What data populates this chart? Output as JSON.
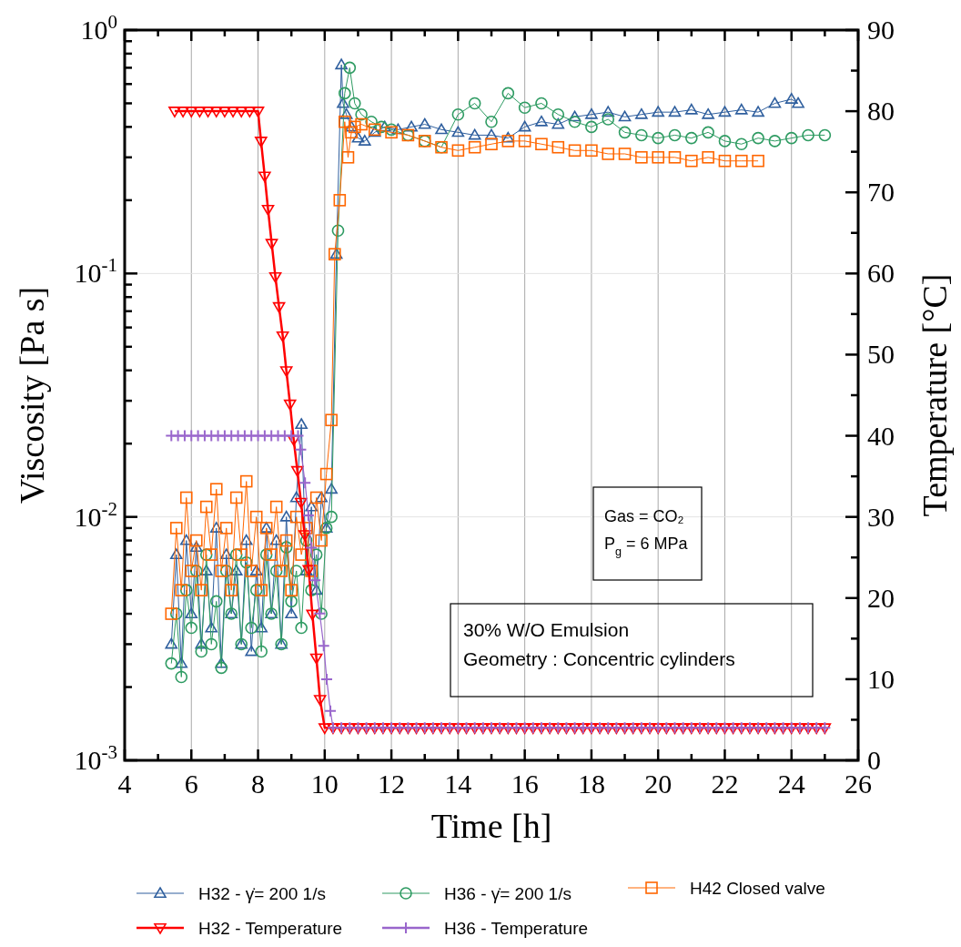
{
  "chart_data": {
    "type": "line",
    "xlabel": "Time [h]",
    "ylabel": "Viscosity [Pa s]",
    "y2label": "Temperature [°C]",
    "log": "y",
    "grid": true,
    "legend": "bottom",
    "xlim": [
      4,
      26
    ],
    "xticks": [
      4,
      {
        "value": 5,
        "label": null
      },
      6,
      {
        "value": 7,
        "label": null
      },
      8,
      {
        "value": 9,
        "label": null
      },
      10,
      {
        "value": 11,
        "label": null
      },
      12,
      {
        "value": 13,
        "label": null
      },
      14,
      {
        "value": 15,
        "label": null
      },
      16,
      {
        "value": 17,
        "label": null
      },
      18,
      {
        "value": 19,
        "label": null
      },
      20,
      {
        "value": 21,
        "label": null
      },
      22,
      {
        "value": 23,
        "label": null
      },
      24,
      {
        "value": 25,
        "label": null
      },
      26
    ],
    "ylim": [
      0.001,
      1
    ],
    "yticks": [
      {
        "value": 0.001,
        "label": "10$^{-3}$"
      },
      {
        "value": 0.002,
        "label": null
      },
      {
        "value": 0.003,
        "label": null
      },
      {
        "value": 0.004,
        "label": null
      },
      {
        "value": 0.005,
        "label": null
      },
      {
        "value": 0.006,
        "label": null
      },
      {
        "value": 0.007,
        "label": null
      },
      {
        "value": 0.008,
        "label": null
      },
      {
        "value": 0.009,
        "label": null
      },
      {
        "value": 0.01,
        "label": "10$^{-2}$"
      },
      {
        "value": 0.02,
        "label": null
      },
      {
        "value": 0.03,
        "label": null
      },
      {
        "value": 0.04,
        "label": null
      },
      {
        "value": 0.05,
        "label": null
      },
      {
        "value": 0.06,
        "label": null
      },
      {
        "value": 0.07,
        "label": null
      },
      {
        "value": 0.08,
        "label": null
      },
      {
        "value": 0.09,
        "label": null
      },
      {
        "value": 0.1,
        "label": "10$^{-1}$"
      },
      {
        "value": 0.2,
        "label": null
      },
      {
        "value": 0.3,
        "label": null
      },
      {
        "value": 0.4,
        "label": null
      },
      {
        "value": 0.5,
        "label": null
      },
      {
        "value": 0.6,
        "label": null
      },
      {
        "value": 0.7,
        "label": null
      },
      {
        "value": 0.8,
        "label": null
      },
      {
        "value": 0.9,
        "label": null
      },
      {
        "value": 1,
        "label": "10$^{0}$"
      }
    ],
    "y2lim": [
      0,
      90
    ],
    "y2ticks": [
      0,
      {
        "value": 5,
        "label": null
      },
      10,
      {
        "value": 15,
        "label": null
      },
      20,
      {
        "value": 25,
        "label": null
      },
      30,
      {
        "value": 35,
        "label": null
      },
      40,
      {
        "value": 45,
        "label": null
      },
      50,
      {
        "value": 55,
        "label": null
      },
      60,
      {
        "value": 65,
        "label": null
      },
      70,
      {
        "value": 75,
        "label": null
      },
      80,
      {
        "value": 85,
        "label": null
      },
      90
    ],
    "annotations": [
      "Gas = CO₂\nP$_{g}$ = 6 MPa",
      "30% W/O Emulsion\nGeometry : Concentric cylinders"
    ],
    "series": [
      {
        "name": "H32 - γ̇= 200 1/s",
        "color": "#2f5f9e",
        "marker": "triangle",
        "x": [
          5.4,
          5.55,
          5.7,
          5.85,
          6.0,
          6.15,
          6.3,
          6.45,
          6.6,
          6.75,
          6.9,
          7.05,
          7.2,
          7.35,
          7.5,
          7.65,
          7.8,
          7.95,
          8.1,
          8.25,
          8.4,
          8.55,
          8.7,
          8.85,
          9.0,
          9.15,
          9.3,
          9.45,
          9.6,
          9.75,
          9.9,
          10.05,
          10.2,
          10.35,
          10.5,
          10.55,
          10.65,
          10.8,
          11.0,
          11.2,
          11.5,
          11.8,
          12.2,
          12.6,
          13.0,
          13.5,
          14.0,
          14.5,
          15.0,
          15.5,
          16.0,
          16.5,
          17.0,
          17.5,
          18.0,
          18.5,
          19.0,
          19.5,
          20.0,
          20.5,
          21.0,
          21.5,
          22.0,
          22.5,
          23.0,
          23.5,
          24.0,
          24.2
        ],
        "values": [
          0.003,
          0.007,
          0.0025,
          0.008,
          0.004,
          0.0075,
          0.003,
          0.006,
          0.0035,
          0.009,
          0.0025,
          0.007,
          0.004,
          0.006,
          0.003,
          0.008,
          0.0028,
          0.006,
          0.0035,
          0.009,
          0.004,
          0.008,
          0.003,
          0.01,
          0.004,
          0.012,
          0.024,
          0.006,
          0.011,
          0.005,
          0.012,
          0.009,
          0.013,
          0.12,
          0.72,
          0.5,
          0.45,
          0.4,
          0.36,
          0.35,
          0.38,
          0.4,
          0.39,
          0.4,
          0.41,
          0.39,
          0.38,
          0.37,
          0.37,
          0.36,
          0.4,
          0.42,
          0.41,
          0.44,
          0.45,
          0.46,
          0.44,
          0.45,
          0.46,
          0.46,
          0.47,
          0.45,
          0.46,
          0.47,
          0.46,
          0.5,
          0.52,
          0.5
        ]
      },
      {
        "name": "H36 - γ̇= 200 1/s",
        "color": "#2e9b62",
        "marker": "circle",
        "x": [
          5.4,
          5.55,
          5.7,
          5.85,
          6.0,
          6.15,
          6.3,
          6.45,
          6.6,
          6.75,
          6.9,
          7.05,
          7.2,
          7.35,
          7.5,
          7.65,
          7.8,
          7.95,
          8.1,
          8.25,
          8.4,
          8.55,
          8.7,
          8.85,
          9.0,
          9.15,
          9.3,
          9.45,
          9.6,
          9.75,
          9.9,
          10.05,
          10.2,
          10.4,
          10.6,
          10.75,
          10.9,
          11.1,
          11.4,
          11.7,
          12.0,
          12.5,
          13.0,
          13.5,
          14.0,
          14.5,
          15.0,
          15.5,
          16.0,
          16.5,
          17.0,
          17.5,
          18.0,
          18.5,
          19.0,
          19.5,
          20.0,
          20.5,
          21.0,
          21.5,
          22.0,
          22.5,
          23.0,
          23.5,
          24.0,
          24.5,
          25.0
        ],
        "values": [
          0.0025,
          0.004,
          0.0022,
          0.005,
          0.0035,
          0.006,
          0.0028,
          0.007,
          0.003,
          0.0045,
          0.0024,
          0.006,
          0.004,
          0.007,
          0.003,
          0.0065,
          0.0035,
          0.005,
          0.0028,
          0.007,
          0.004,
          0.006,
          0.003,
          0.0075,
          0.0045,
          0.006,
          0.0035,
          0.008,
          0.005,
          0.007,
          0.004,
          0.009,
          0.01,
          0.15,
          0.55,
          0.7,
          0.5,
          0.45,
          0.42,
          0.4,
          0.39,
          0.37,
          0.35,
          0.33,
          0.45,
          0.5,
          0.42,
          0.55,
          0.48,
          0.5,
          0.45,
          0.42,
          0.4,
          0.43,
          0.38,
          0.37,
          0.36,
          0.37,
          0.36,
          0.38,
          0.35,
          0.34,
          0.36,
          0.35,
          0.36,
          0.37,
          0.37
        ]
      },
      {
        "name": "H42 Closed valve",
        "color": "#ff6600",
        "marker": "square",
        "x": [
          5.4,
          5.55,
          5.7,
          5.85,
          6.0,
          6.15,
          6.3,
          6.45,
          6.6,
          6.75,
          6.9,
          7.05,
          7.2,
          7.35,
          7.5,
          7.65,
          7.8,
          7.95,
          8.1,
          8.25,
          8.4,
          8.55,
          8.7,
          8.85,
          9.0,
          9.15,
          9.3,
          9.45,
          9.6,
          9.75,
          9.9,
          10.05,
          10.2,
          10.3,
          10.45,
          10.6,
          10.7,
          10.8,
          10.9,
          11.1,
          11.5,
          12.0,
          12.5,
          13.0,
          13.5,
          14.0,
          14.5,
          15.0,
          15.5,
          16.0,
          16.5,
          17.0,
          17.5,
          18.0,
          18.5,
          19.0,
          19.5,
          20.0,
          20.5,
          21.0,
          21.5,
          22.0,
          22.5,
          23.0
        ],
        "values": [
          0.004,
          0.009,
          0.005,
          0.012,
          0.006,
          0.008,
          0.005,
          0.011,
          0.007,
          0.013,
          0.006,
          0.009,
          0.005,
          0.012,
          0.007,
          0.014,
          0.006,
          0.01,
          0.005,
          0.009,
          0.007,
          0.011,
          0.006,
          0.008,
          0.005,
          0.01,
          0.007,
          0.009,
          0.006,
          0.012,
          0.008,
          0.015,
          0.025,
          0.12,
          0.2,
          0.42,
          0.3,
          0.38,
          0.4,
          0.41,
          0.39,
          0.38,
          0.37,
          0.35,
          0.33,
          0.32,
          0.33,
          0.34,
          0.35,
          0.35,
          0.34,
          0.33,
          0.32,
          0.32,
          0.31,
          0.31,
          0.3,
          0.3,
          0.3,
          0.29,
          0.3,
          0.29,
          0.29,
          0.29
        ]
      },
      {
        "name": "H32 - Temperature",
        "color": "#ff0000",
        "marker": "triangle-down",
        "axis": "y2",
        "x": [
          5.5,
          5.75,
          6,
          6.25,
          6.5,
          6.75,
          7,
          7.25,
          7.5,
          7.75,
          8,
          8.09,
          8.2,
          8.3,
          8.41,
          8.52,
          8.63,
          8.74,
          8.85,
          8.96,
          9.07,
          9.18,
          9.29,
          9.4,
          9.52,
          9.63,
          9.75,
          9.86,
          10,
          10.25,
          10.5,
          10.75,
          11,
          11.25,
          11.5,
          11.75,
          12,
          12.25,
          12.5,
          12.75,
          13,
          13.25,
          13.5,
          13.75,
          14,
          14.25,
          14.5,
          14.75,
          15,
          15.25,
          15.5,
          15.75,
          16,
          16.25,
          16.5,
          16.75,
          17,
          17.25,
          17.5,
          17.75,
          18,
          18.25,
          18.5,
          18.75,
          19,
          19.25,
          19.5,
          19.75,
          20,
          20.25,
          20.5,
          20.75,
          21,
          21.25,
          21.5,
          21.75,
          22,
          22.25,
          22.5,
          22.75,
          23,
          23.25,
          23.5,
          23.75,
          24,
          24.25,
          24.5,
          24.75,
          25
        ],
        "values": [
          80,
          80,
          80,
          80,
          80,
          80,
          80,
          80,
          80,
          80,
          80,
          76.3,
          72,
          67.9,
          63.7,
          59.6,
          55.9,
          52.3,
          48,
          43.9,
          39.5,
          35.7,
          31.8,
          27.8,
          23.5,
          18,
          12.6,
          7.5,
          4,
          4,
          4,
          4,
          4,
          4,
          4,
          4,
          4,
          4,
          4,
          4,
          4,
          4,
          4,
          4,
          4,
          4,
          4,
          4,
          4,
          4,
          4,
          4,
          4,
          4,
          4,
          4,
          4,
          4,
          4,
          4,
          4,
          4,
          4,
          4,
          4,
          4,
          4,
          4,
          4,
          4,
          4,
          4,
          4,
          4,
          4,
          4,
          4,
          4,
          4,
          4,
          4,
          4,
          4,
          4,
          4,
          4,
          4,
          4,
          4
        ]
      },
      {
        "name": "H36 - Temperature",
        "color": "#9966cc",
        "marker": "cross",
        "axis": "y2",
        "x": [
          5.4,
          5.6,
          5.8,
          6,
          6.2,
          6.4,
          6.6,
          6.8,
          7,
          7.2,
          7.4,
          7.6,
          7.8,
          8,
          8.2,
          8.4,
          8.6,
          8.8,
          9,
          9.2,
          9.28,
          9.41,
          9.51,
          9.6,
          9.71,
          9.85,
          9.97,
          10.06,
          10.17,
          10.25,
          10.5,
          10.75,
          11,
          11.25,
          11.5,
          11.75,
          12,
          12.25,
          12.5,
          12.75,
          13,
          13.25,
          13.5,
          13.75,
          14,
          14.25,
          14.5,
          14.75,
          15,
          15.25,
          15.5,
          15.75,
          16,
          16.25,
          16.5,
          16.75,
          17,
          17.25,
          17.5,
          17.75,
          18,
          18.25,
          18.5,
          18.75,
          19,
          19.25,
          19.5,
          19.75,
          20,
          20.25,
          20.5,
          20.75,
          21,
          21.25,
          21.5,
          21.75,
          22,
          22.25,
          22.5,
          22.75,
          23,
          23.25,
          23.5,
          23.75,
          24,
          24.25,
          24.5,
          24.75,
          25
        ],
        "values": [
          40,
          40,
          40,
          40,
          40,
          40,
          40,
          40,
          40,
          40,
          40,
          40,
          40,
          40,
          40,
          40,
          40,
          40,
          40,
          40,
          38.3,
          34.2,
          30.2,
          26.2,
          22.2,
          18.1,
          14.1,
          10,
          6.1,
          4,
          4,
          4,
          4,
          4,
          4,
          4,
          4,
          4,
          4,
          4,
          4,
          4,
          4,
          4,
          4,
          4,
          4,
          4,
          4,
          4,
          4,
          4,
          4,
          4,
          4,
          4,
          4,
          4,
          4,
          4,
          4,
          4,
          4,
          4,
          4,
          4,
          4,
          4,
          4,
          4,
          4,
          4,
          4,
          4,
          4,
          4,
          4,
          4,
          4,
          4,
          4,
          4,
          4,
          4,
          4,
          4,
          4,
          4,
          4
        ]
      }
    ]
  }
}
